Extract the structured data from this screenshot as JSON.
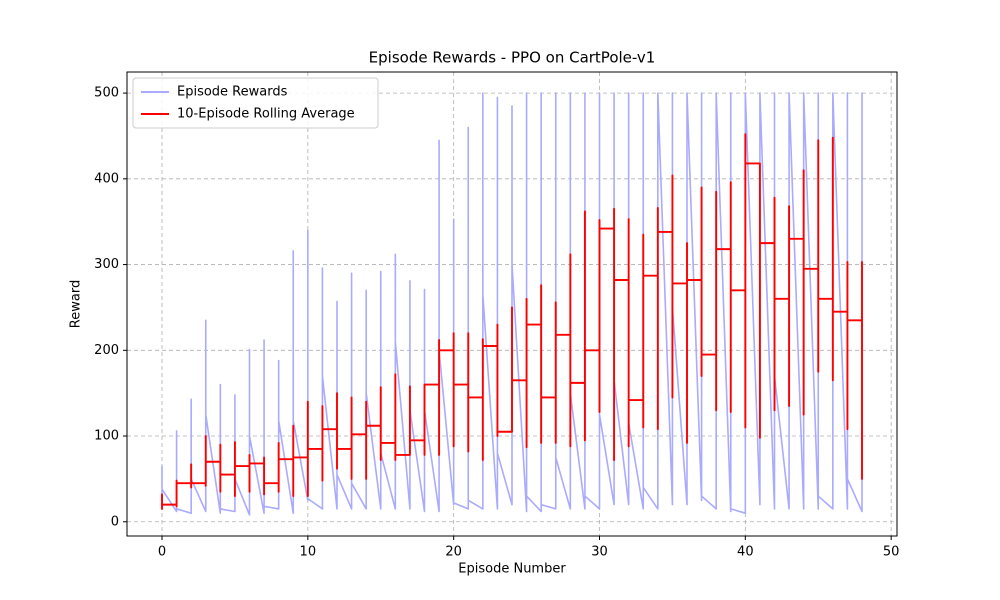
{
  "chart_data": {
    "type": "line",
    "title": "Episode Rewards - PPO on CartPole-v1",
    "x_label": "Episode Number",
    "y_label": "Reward",
    "xlim": [
      -2.4,
      50.4
    ],
    "ylim": [
      -16.6,
      524.6
    ],
    "xticks": [
      0,
      10,
      20,
      30,
      40,
      50
    ],
    "yticks": [
      0,
      100,
      200,
      300,
      400,
      500
    ],
    "grid": true,
    "legend": "upper left",
    "series": [
      {
        "name": "Episode Rewards",
        "color": "#aaaaff",
        "x": [
          0,
          0,
          0,
          1,
          1,
          1,
          2,
          2,
          2,
          3,
          3,
          3,
          4,
          4,
          4,
          5,
          5,
          5,
          6,
          6,
          6,
          7,
          7,
          7,
          8,
          8,
          8,
          9,
          9,
          9,
          10,
          10,
          10,
          11,
          11,
          11,
          12,
          12,
          12,
          13,
          13,
          13,
          14,
          14,
          14,
          15,
          15,
          15,
          16,
          16,
          16,
          17,
          17,
          17,
          18,
          18,
          18,
          19,
          19,
          19,
          20,
          20,
          20,
          21,
          21,
          21,
          22,
          22,
          22,
          23,
          23,
          23,
          24,
          24,
          24,
          25,
          25,
          25,
          26,
          26,
          26,
          27,
          27,
          27,
          28,
          28,
          28,
          29,
          29,
          29,
          30,
          30,
          30,
          31,
          31,
          31,
          32,
          32,
          32,
          33,
          33,
          33,
          34,
          34,
          34,
          35,
          35,
          35,
          36,
          36,
          36,
          37,
          37,
          37,
          38,
          38,
          38,
          39,
          39,
          39,
          40,
          40,
          40,
          41,
          41,
          41,
          42,
          42,
          42,
          43,
          43,
          43,
          44,
          44,
          44,
          45,
          45,
          45,
          46,
          46,
          46,
          47,
          47,
          47,
          48,
          48,
          48
        ],
        "values": [
          15,
          65,
          38,
          12,
          106,
          15,
          10,
          143,
          50,
          12,
          235,
          125,
          10,
          160,
          15,
          12,
          148,
          50,
          8,
          201,
          100,
          10,
          212,
          18,
          15,
          188,
          118,
          10,
          316,
          118,
          25,
          340,
          27,
          15,
          296,
          170,
          15,
          257,
          55,
          15,
          290,
          45,
          15,
          270,
          150,
          15,
          292,
          80,
          15,
          312,
          210,
          15,
          281,
          130,
          12,
          271,
          130,
          12,
          445,
          200,
          20,
          353,
          22,
          15,
          460,
          25,
          15,
          500,
          265,
          15,
          495,
          80,
          20,
          485,
          300,
          12,
          500,
          30,
          12,
          500,
          20,
          15,
          500,
          75,
          15,
          500,
          150,
          15,
          500,
          30,
          15,
          500,
          125,
          20,
          500,
          165,
          20,
          500,
          115,
          15,
          500,
          40,
          15,
          500,
          500,
          20,
          500,
          250,
          20,
          500,
          500,
          25,
          500,
          30,
          15,
          500,
          500,
          12,
          500,
          15,
          10,
          500,
          500,
          20,
          500,
          500,
          15,
          500,
          170,
          15,
          500,
          500,
          15,
          500,
          500,
          15,
          500,
          30,
          15,
          500,
          500,
          15,
          500,
          50,
          12,
          500,
          50
        ]
      },
      {
        "name": "10-Episode Rolling Average",
        "color": "#ff0000",
        "x": [
          0,
          0,
          0,
          0,
          1,
          1,
          1,
          1,
          2,
          2,
          2,
          2,
          3,
          3,
          3,
          3,
          4,
          4,
          4,
          4,
          5,
          5,
          5,
          5,
          6,
          6,
          6,
          6,
          7,
          7,
          7,
          7,
          8,
          8,
          8,
          8,
          9,
          9,
          9,
          9,
          10,
          10,
          10,
          10,
          11,
          11,
          11,
          11,
          12,
          12,
          12,
          12,
          13,
          13,
          13,
          13,
          14,
          14,
          14,
          14,
          15,
          15,
          15,
          15,
          16,
          16,
          16,
          16,
          17,
          17,
          17,
          17,
          18,
          18,
          18,
          18,
          19,
          19,
          19,
          19,
          20,
          20,
          20,
          20,
          21,
          21,
          21,
          21,
          22,
          22,
          22,
          22,
          23,
          23,
          23,
          23,
          24,
          24,
          24,
          24,
          25,
          25,
          25,
          25,
          26,
          26,
          26,
          26,
          27,
          27,
          27,
          27,
          28,
          28,
          28,
          28,
          29,
          29,
          29,
          29,
          30,
          30,
          30,
          30,
          31,
          31,
          31,
          31,
          32,
          32,
          32,
          32,
          33,
          33,
          33,
          33,
          34,
          34,
          34,
          34,
          35,
          35,
          35,
          35,
          36,
          36,
          36,
          36,
          37,
          37,
          37,
          37,
          38,
          38,
          38,
          38,
          39,
          39,
          39,
          39,
          40,
          40,
          40,
          40,
          41,
          41,
          41,
          41,
          42,
          42,
          42,
          42,
          43,
          43,
          43,
          43,
          44,
          44,
          44,
          44,
          45,
          45,
          45,
          45,
          46,
          46,
          46,
          46,
          47,
          47,
          47,
          47,
          48,
          48,
          48,
          48
        ],
        "values": [
          20,
          15,
          32,
          20,
          20,
          18,
          48,
          45,
          45,
          40,
          67,
          45,
          45,
          42,
          100,
          70,
          70,
          35,
          90,
          55,
          55,
          30,
          93,
          65,
          65,
          35,
          78,
          68,
          68,
          32,
          75,
          45,
          45,
          35,
          92,
          73,
          73,
          30,
          112,
          75,
          75,
          30,
          140,
          85,
          85,
          48,
          135,
          108,
          108,
          62,
          150,
          85,
          85,
          50,
          145,
          102,
          102,
          50,
          140,
          112,
          112,
          72,
          157,
          92,
          92,
          72,
          172,
          78,
          78,
          82,
          158,
          95,
          95,
          78,
          160,
          160,
          160,
          78,
          212,
          200,
          200,
          88,
          220,
          160,
          160,
          82,
          220,
          145,
          145,
          72,
          213,
          205,
          205,
          100,
          230,
          105,
          105,
          105,
          250,
          165,
          165,
          87,
          260,
          230,
          230,
          92,
          276,
          145,
          145,
          92,
          256,
          218,
          218,
          88,
          312,
          162,
          162,
          95,
          362,
          200,
          200,
          128,
          352,
          342,
          342,
          72,
          365,
          282,
          282,
          88,
          353,
          142,
          142,
          110,
          335,
          287,
          287,
          108,
          366,
          338,
          338,
          145,
          404,
          278,
          278,
          92,
          325,
          282,
          282,
          170,
          390,
          195,
          195,
          130,
          385,
          318,
          318,
          128,
          396,
          270,
          270,
          110,
          452,
          418,
          418,
          98,
          385,
          325,
          325,
          130,
          378,
          260,
          260,
          135,
          368,
          330,
          330,
          125,
          410,
          295,
          295,
          175,
          445,
          260,
          260,
          165,
          448,
          245,
          245,
          108,
          303,
          235,
          235,
          50,
          303,
          282
        ]
      }
    ]
  }
}
